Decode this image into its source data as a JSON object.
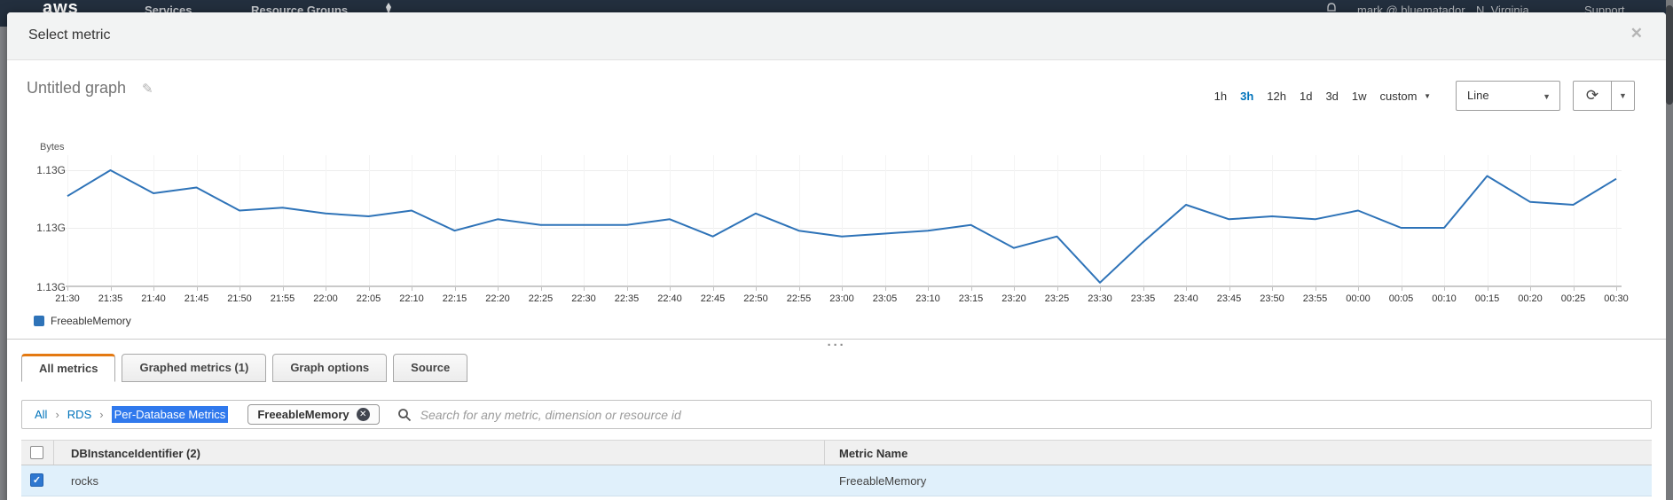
{
  "topnav": {
    "logo": "aws",
    "items": [
      "Services",
      "Resource Groups"
    ],
    "right": {
      "user": "mark @ bluematador",
      "region": "N. Virginia",
      "support": "Support"
    }
  },
  "modal": {
    "title": "Select metric",
    "close_label": "✕",
    "resize_handle": "···"
  },
  "graph": {
    "title": "Untitled graph",
    "edit_icon": "✎",
    "ranges": [
      "1h",
      "3h",
      "12h",
      "1d",
      "3d",
      "1w"
    ],
    "active_range": "3h",
    "custom_label": "custom",
    "caret_icon": "▼",
    "chart_type_selected": "Line",
    "refresh_icon": "⟳",
    "legend_label": "FreeableMemory",
    "legend_color": "#2e73b8"
  },
  "chart_data": {
    "type": "line",
    "title": "",
    "ylabel": "Bytes",
    "yticks": [
      "1.13G",
      "1.13G",
      "1.13G"
    ],
    "ytick_values": [
      1.131,
      1.129,
      1.127
    ],
    "ylim": [
      1.127,
      1.1315
    ],
    "grid": true,
    "legend_position": "bottom-left",
    "x": [
      "21:30",
      "21:35",
      "21:40",
      "21:45",
      "21:50",
      "21:55",
      "22:00",
      "22:05",
      "22:10",
      "22:15",
      "22:20",
      "22:25",
      "22:30",
      "22:35",
      "22:40",
      "22:45",
      "22:50",
      "22:55",
      "23:00",
      "23:05",
      "23:10",
      "23:15",
      "23:20",
      "23:25",
      "23:30",
      "23:35",
      "23:40",
      "23:45",
      "23:50",
      "23:55",
      "00:00",
      "00:05",
      "00:10",
      "00:15",
      "00:20",
      "00:25",
      "00:30"
    ],
    "series": [
      {
        "name": "FreeableMemory",
        "color": "#2e73b8",
        "unit": "G",
        "values": [
          1.1301,
          1.131,
          1.1302,
          1.1304,
          1.1296,
          1.1297,
          1.1295,
          1.1294,
          1.1296,
          1.1289,
          1.1293,
          1.1291,
          1.1291,
          1.1291,
          1.1293,
          1.1287,
          1.1295,
          1.1289,
          1.1287,
          1.1288,
          1.1289,
          1.1291,
          1.1283,
          1.1287,
          1.1271,
          1.1285,
          1.1298,
          1.1293,
          1.1294,
          1.1293,
          1.1296,
          1.129,
          1.129,
          1.1308,
          1.1299,
          1.1298,
          1.1307
        ]
      }
    ]
  },
  "tabs": [
    {
      "label": "All metrics",
      "active": true
    },
    {
      "label": "Graphed metrics (1)",
      "active": false
    },
    {
      "label": "Graph options",
      "active": false
    },
    {
      "label": "Source",
      "active": false
    }
  ],
  "browser": {
    "breadcrumb": [
      "All",
      "RDS"
    ],
    "breadcrumb_separator": "›",
    "selected_crumb": "Per-Database Metrics",
    "filter_pill": "FreeableMemory",
    "pill_remove_icon": "✕",
    "search_placeholder": "Search for any metric, dimension or resource id"
  },
  "table": {
    "columns": [
      "DBInstanceIdentifier (2)",
      "Metric Name"
    ],
    "rows": [
      {
        "checked": true,
        "check_icon": "✓",
        "cells": [
          "rocks",
          "FreeableMemory"
        ]
      }
    ]
  }
}
